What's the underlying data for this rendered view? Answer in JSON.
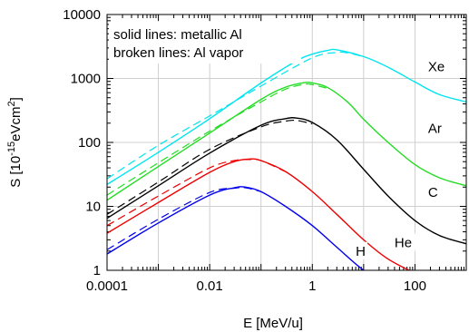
{
  "chart_data": {
    "type": "line",
    "title": "",
    "xlabel": "E [MeV/u]",
    "ylabel": {
      "prefix": "S [10",
      "exp1": "-15",
      "mid": "eVcm",
      "exp2": "2",
      "suffix": "]"
    },
    "xscale": "log",
    "yscale": "log",
    "xlim": [
      0.0001,
      1000
    ],
    "ylim": [
      1,
      10000
    ],
    "grid": true,
    "x_ticks": [
      {
        "value": 0.0001,
        "label": "0.0001"
      },
      {
        "value": 0.01,
        "label": "0.01"
      },
      {
        "value": 1,
        "label": "1"
      },
      {
        "value": 100,
        "label": "100"
      }
    ],
    "y_ticks": [
      {
        "value": 1,
        "label": "1"
      },
      {
        "value": 10,
        "label": "10"
      },
      {
        "value": 100,
        "label": "100"
      },
      {
        "value": 1000,
        "label": "1000"
      },
      {
        "value": 10000,
        "label": "10000"
      }
    ],
    "annotations": [
      "solid lines: metallic Al",
      "broken lines: Al vapor"
    ],
    "series": [
      {
        "name": "Xe",
        "color": "#00e5ee",
        "solid": [
          [
            0.0001,
            22
          ],
          [
            0.001,
            70
          ],
          [
            0.01,
            235
          ],
          [
            0.1,
            850
          ],
          [
            0.5,
            1900
          ],
          [
            1,
            2400
          ],
          [
            2,
            2750
          ],
          [
            3,
            2800
          ],
          [
            10,
            2200
          ],
          [
            30,
            1500
          ],
          [
            100,
            880
          ],
          [
            300,
            560
          ],
          [
            1000,
            430
          ]
        ],
        "dashed": [
          [
            0.0001,
            27
          ],
          [
            0.001,
            90
          ],
          [
            0.01,
            260
          ],
          [
            0.1,
            760
          ],
          [
            1,
            2100
          ],
          [
            3,
            2550
          ],
          [
            5,
            2500
          ],
          [
            10,
            2200
          ]
        ]
      },
      {
        "name": "Ar",
        "color": "#22dd22",
        "solid": [
          [
            0.0001,
            12.5
          ],
          [
            0.001,
            42
          ],
          [
            0.01,
            140
          ],
          [
            0.1,
            470
          ],
          [
            0.3,
            730
          ],
          [
            0.7,
            860
          ],
          [
            1,
            850
          ],
          [
            2,
            720
          ],
          [
            5,
            420
          ],
          [
            10,
            230
          ],
          [
            30,
            100
          ],
          [
            100,
            45
          ],
          [
            300,
            28
          ],
          [
            1000,
            21
          ]
        ],
        "dashed": [
          [
            0.0001,
            15
          ],
          [
            0.001,
            48
          ],
          [
            0.01,
            150
          ],
          [
            0.1,
            430
          ],
          [
            0.3,
            680
          ],
          [
            0.7,
            810
          ],
          [
            1,
            800
          ],
          [
            2,
            700
          ]
        ]
      },
      {
        "name": "C",
        "color": "#000000",
        "solid": [
          [
            0.0001,
            6.5
          ],
          [
            0.001,
            21
          ],
          [
            0.01,
            68
          ],
          [
            0.1,
            185
          ],
          [
            0.3,
            235
          ],
          [
            0.5,
            240
          ],
          [
            1,
            205
          ],
          [
            3,
            110
          ],
          [
            10,
            38
          ],
          [
            30,
            14.5
          ],
          [
            100,
            6
          ],
          [
            300,
            3.5
          ],
          [
            1000,
            2.6
          ]
        ],
        "dashed": [
          [
            0.0001,
            7.5
          ],
          [
            0.001,
            24
          ],
          [
            0.01,
            78
          ],
          [
            0.1,
            175
          ],
          [
            0.3,
            215
          ],
          [
            0.5,
            220
          ],
          [
            1,
            195
          ]
        ]
      },
      {
        "name": "He",
        "color": "#ee0000",
        "solid": [
          [
            0.0001,
            3.8
          ],
          [
            0.001,
            11.5
          ],
          [
            0.01,
            34
          ],
          [
            0.03,
            50
          ],
          [
            0.06,
            55
          ],
          [
            0.1,
            52
          ],
          [
            0.3,
            35
          ],
          [
            1,
            17
          ],
          [
            3,
            7.5
          ],
          [
            10,
            3
          ],
          [
            30,
            1.5
          ],
          [
            100,
            0.9
          ]
        ],
        "dashed": [
          [
            0.0001,
            5
          ],
          [
            0.001,
            14.5
          ],
          [
            0.01,
            40
          ],
          [
            0.03,
            52
          ],
          [
            0.06,
            54
          ],
          [
            0.1,
            52
          ],
          [
            0.3,
            35
          ]
        ]
      },
      {
        "name": "H",
        "color": "#0000ee",
        "solid": [
          [
            0.0001,
            1.8
          ],
          [
            0.001,
            5.5
          ],
          [
            0.01,
            15
          ],
          [
            0.03,
            19.5
          ],
          [
            0.05,
            20
          ],
          [
            0.1,
            17
          ],
          [
            0.3,
            10
          ],
          [
            1,
            5
          ],
          [
            3,
            2.3
          ],
          [
            10,
            1
          ],
          [
            30,
            0.6
          ]
        ],
        "dashed": [
          [
            0.0001,
            2.1
          ],
          [
            0.001,
            6.3
          ],
          [
            0.01,
            16.5
          ],
          [
            0.03,
            19.2
          ],
          [
            0.05,
            19.5
          ],
          [
            0.1,
            17
          ]
        ]
      }
    ]
  }
}
